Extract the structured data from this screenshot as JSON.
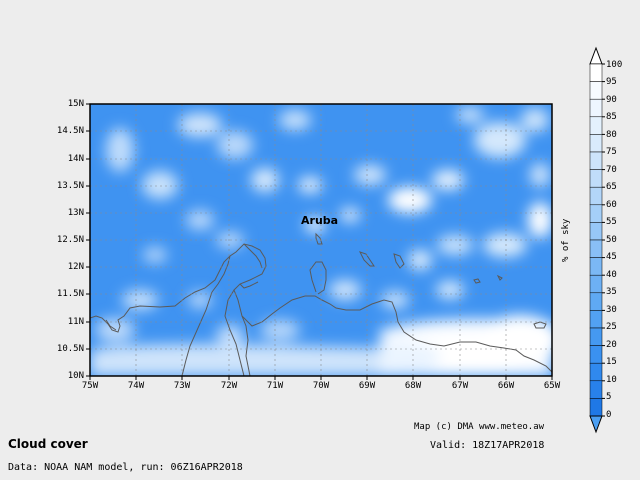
{
  "map": {
    "title": "Cloud cover",
    "credit": "Map (c) DMA www.meteo.aw",
    "valid": "Valid: 18Z17APR2018",
    "data_source": "Data: NOAA NAM model, run: 06Z16APR2018",
    "place_label": "Aruba",
    "lat_labels": [
      "15N",
      "14.5N",
      "14N",
      "13.5N",
      "13N",
      "12.5N",
      "12N",
      "11.5N",
      "11N",
      "10.5N",
      "10N"
    ],
    "lon_labels": [
      "75W",
      "74W",
      "73W",
      "72W",
      "71W",
      "70W",
      "69W",
      "68W",
      "67W",
      "66W",
      "65W"
    ],
    "colorbar": {
      "unit": "% of sky",
      "ticks": [
        "100",
        "95",
        "90",
        "85",
        "80",
        "75",
        "70",
        "65",
        "60",
        "55",
        "50",
        "45",
        "40",
        "35",
        "30",
        "25",
        "20",
        "15",
        "10",
        "5",
        "0"
      ],
      "colors": [
        "#ffffff",
        "#f7fbff",
        "#eef6ff",
        "#e4f1fd",
        "#d9ebfc",
        "#cde4fb",
        "#c0ddfa",
        "#b3d6f9",
        "#a5cff8",
        "#97c7f7",
        "#89bff6",
        "#7bb8f5",
        "#6db0f4",
        "#5fa9f3",
        "#52a1f2",
        "#4599f1",
        "#3a91f0",
        "#3089ee",
        "#2881eb",
        "#1f78e6"
      ]
    },
    "colors": {
      "sky": "#3f93f1",
      "cloud": "#ffffff",
      "coast": "#5a5a5a",
      "grid": "#8a8a8a"
    }
  }
}
